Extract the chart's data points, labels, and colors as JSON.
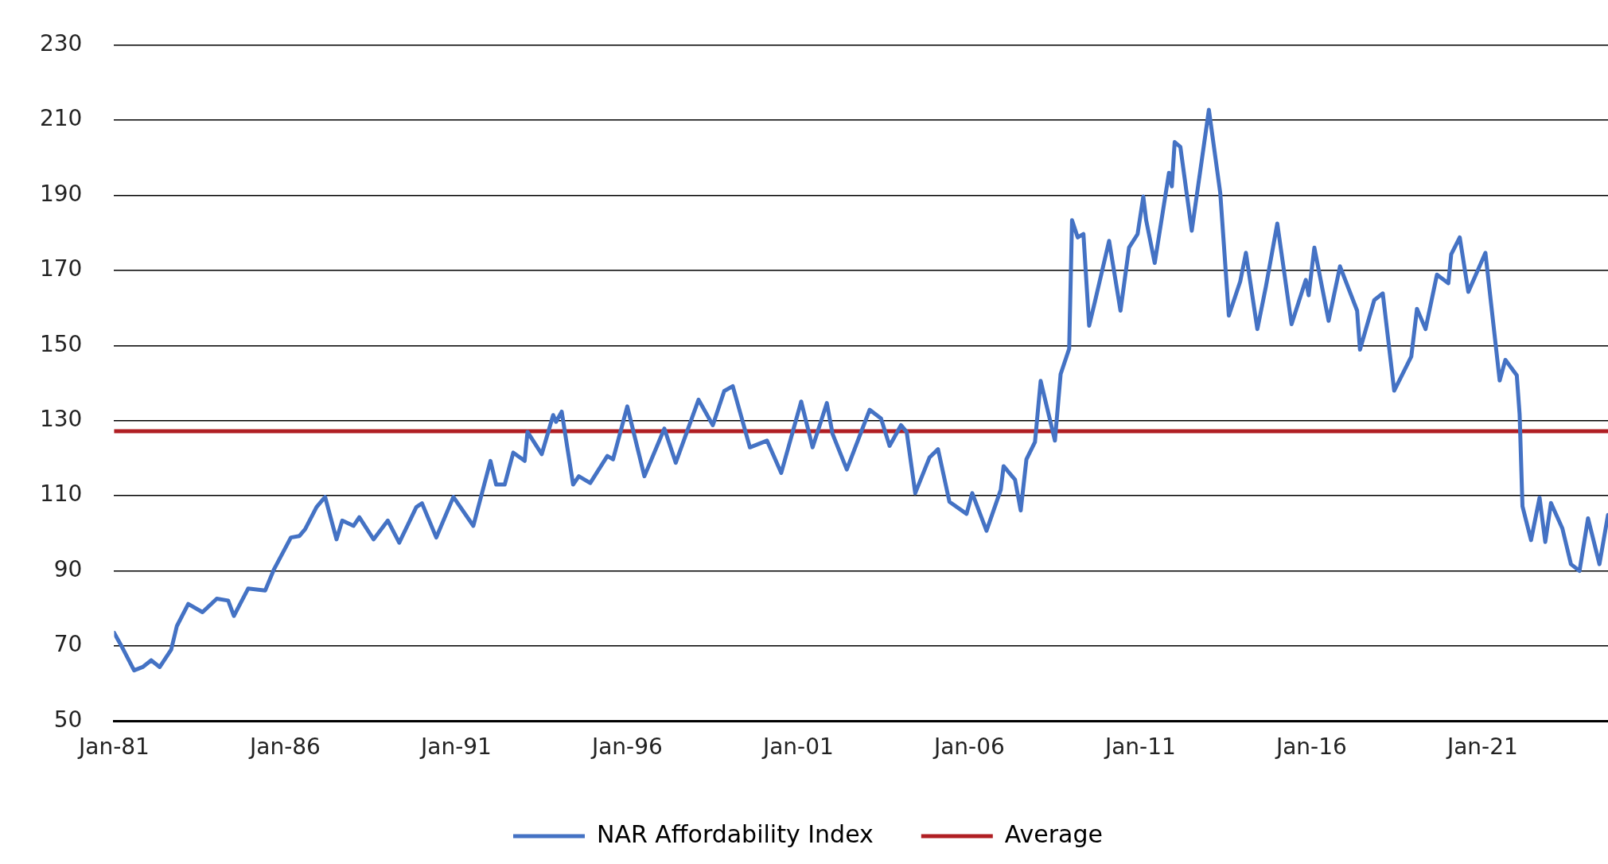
{
  "chart_data": {
    "type": "line",
    "xlim": [
      "1981-01",
      "2024-09"
    ],
    "ylim": [
      50,
      230
    ],
    "yticks": [
      50,
      70,
      90,
      110,
      130,
      150,
      170,
      190,
      210,
      230
    ],
    "xticks": [
      {
        "value": "1981-01",
        "label": "Jan-81"
      },
      {
        "value": "1986-01",
        "label": "Jan-86"
      },
      {
        "value": "1991-01",
        "label": "Jan-91"
      },
      {
        "value": "1996-01",
        "label": "Jan-96"
      },
      {
        "value": "2001-01",
        "label": "Jan-01"
      },
      {
        "value": "2006-01",
        "label": "Jan-06"
      },
      {
        "value": "2011-01",
        "label": "Jan-11"
      },
      {
        "value": "2016-01",
        "label": "Jan-16"
      },
      {
        "value": "2021-01",
        "label": "Jan-21"
      }
    ],
    "grid": "y",
    "legend": "bottom",
    "marker": "none",
    "line_style": "solid",
    "series": [
      {
        "name": "NAR Affordability Index",
        "color": "#4472c4",
        "x": [
          "1981-01",
          "1981-04",
          "1981-08",
          "1981-11",
          "1982-02",
          "1982-05",
          "1982-09",
          "1982-11",
          "1983-03",
          "1983-08",
          "1984-01",
          "1984-05",
          "1984-07",
          "1984-12",
          "1985-06",
          "1985-09",
          "1986-03",
          "1986-06",
          "1986-08",
          "1986-12",
          "1987-03",
          "1987-07",
          "1987-09",
          "1988-01",
          "1988-03",
          "1988-08",
          "1989-01",
          "1989-05",
          "1989-11",
          "1990-01",
          "1990-06",
          "1990-12",
          "1991-07",
          "1992-01",
          "1992-03",
          "1992-06",
          "1992-09",
          "1993-01",
          "1993-02",
          "1993-07",
          "1993-11",
          "1993-12",
          "1994-02",
          "1994-06",
          "1994-08",
          "1994-12",
          "1995-06",
          "1995-08",
          "1996-01",
          "1996-07",
          "1997-02",
          "1997-06",
          "1998-02",
          "1998-07",
          "1998-11",
          "1999-02",
          "1999-08",
          "2000-02",
          "2000-07",
          "2001-02",
          "2001-06",
          "2001-11",
          "2002-01",
          "2002-06",
          "2003-02",
          "2003-06",
          "2003-09",
          "2004-01",
          "2004-03",
          "2004-06",
          "2004-11",
          "2005-02",
          "2005-06",
          "2005-12",
          "2006-02",
          "2006-07",
          "2006-12",
          "2007-01",
          "2007-05",
          "2007-07",
          "2007-09",
          "2007-12",
          "2008-02",
          "2008-07",
          "2008-09",
          "2008-12",
          "2009-01",
          "2009-03",
          "2009-05",
          "2009-07",
          "2009-09",
          "2010-02",
          "2010-06",
          "2010-09",
          "2010-12",
          "2011-02",
          "2011-03",
          "2011-06",
          "2011-11",
          "2011-12",
          "2012-01",
          "2012-03",
          "2012-07",
          "2012-11",
          "2013-01",
          "2013-05",
          "2013-08",
          "2013-12",
          "2014-02",
          "2014-06",
          "2014-09",
          "2015-01",
          "2015-06",
          "2015-11",
          "2015-12",
          "2016-02",
          "2016-07",
          "2016-11",
          "2017-05",
          "2017-06",
          "2017-11",
          "2018-02",
          "2018-06",
          "2018-12",
          "2019-02",
          "2019-05",
          "2019-09",
          "2020-01",
          "2020-02",
          "2020-05",
          "2020-08",
          "2021-02",
          "2021-07",
          "2021-09",
          "2022-01",
          "2022-02",
          "2022-03",
          "2022-06",
          "2022-09",
          "2022-11",
          "2023-01",
          "2023-05",
          "2023-08",
          "2023-11",
          "2024-02",
          "2024-06",
          "2024-09"
        ],
        "values": [
          73.5,
          69.4,
          63.5,
          64.4,
          66.2,
          64.4,
          69,
          75.3,
          81.2,
          79,
          82.6,
          82.1,
          78,
          85.3,
          84.8,
          90.3,
          98.9,
          99.3,
          101.1,
          107,
          109.7,
          98.4,
          103.4,
          102,
          104.3,
          98.4,
          103.4,
          97.5,
          107,
          108,
          98.9,
          109.7,
          102,
          119.3,
          113,
          113,
          121.5,
          119.3,
          127,
          121.1,
          131.5,
          129.7,
          132.4,
          113,
          115.2,
          113.4,
          120.6,
          119.7,
          133.8,
          115.2,
          127.9,
          118.8,
          135.6,
          128.8,
          137.9,
          139.2,
          122.9,
          124.7,
          116.1,
          135.1,
          122.9,
          134.7,
          126.5,
          117,
          132.9,
          130.6,
          123.3,
          128.8,
          127,
          110.7,
          120.2,
          122.4,
          108.4,
          105.2,
          110.7,
          100.7,
          111.6,
          117.9,
          114.3,
          106.1,
          119.7,
          124.3,
          140.6,
          124.7,
          142.4,
          149.2,
          183.4,
          178.8,
          179.7,
          155.3,
          161.6,
          177.9,
          159.3,
          176.1,
          179.7,
          189.7,
          183.4,
          172,
          196,
          192.4,
          204.2,
          202.9,
          180.6,
          202,
          212.8,
          190.6,
          158,
          167.1,
          174.7,
          154.4,
          165.7,
          182.5,
          155.7,
          167.5,
          163.4,
          176.1,
          156.6,
          171.1,
          159.3,
          148.9,
          162.1,
          163.9,
          138,
          147.1,
          159.8,
          154.4,
          168.9,
          166.6,
          174.3,
          178.8,
          164.3,
          174.7,
          140.7,
          146.2,
          142.1,
          131.7,
          107.2,
          98.2,
          109.5,
          97.7,
          108.1,
          101.3,
          91.8,
          90,
          104,
          91.8,
          104.9
        ]
      },
      {
        "name": "Average",
        "color": "#b01e23",
        "x": [
          "1981-01",
          "2024-09"
        ],
        "values": [
          127.2,
          127.2
        ]
      }
    ]
  }
}
